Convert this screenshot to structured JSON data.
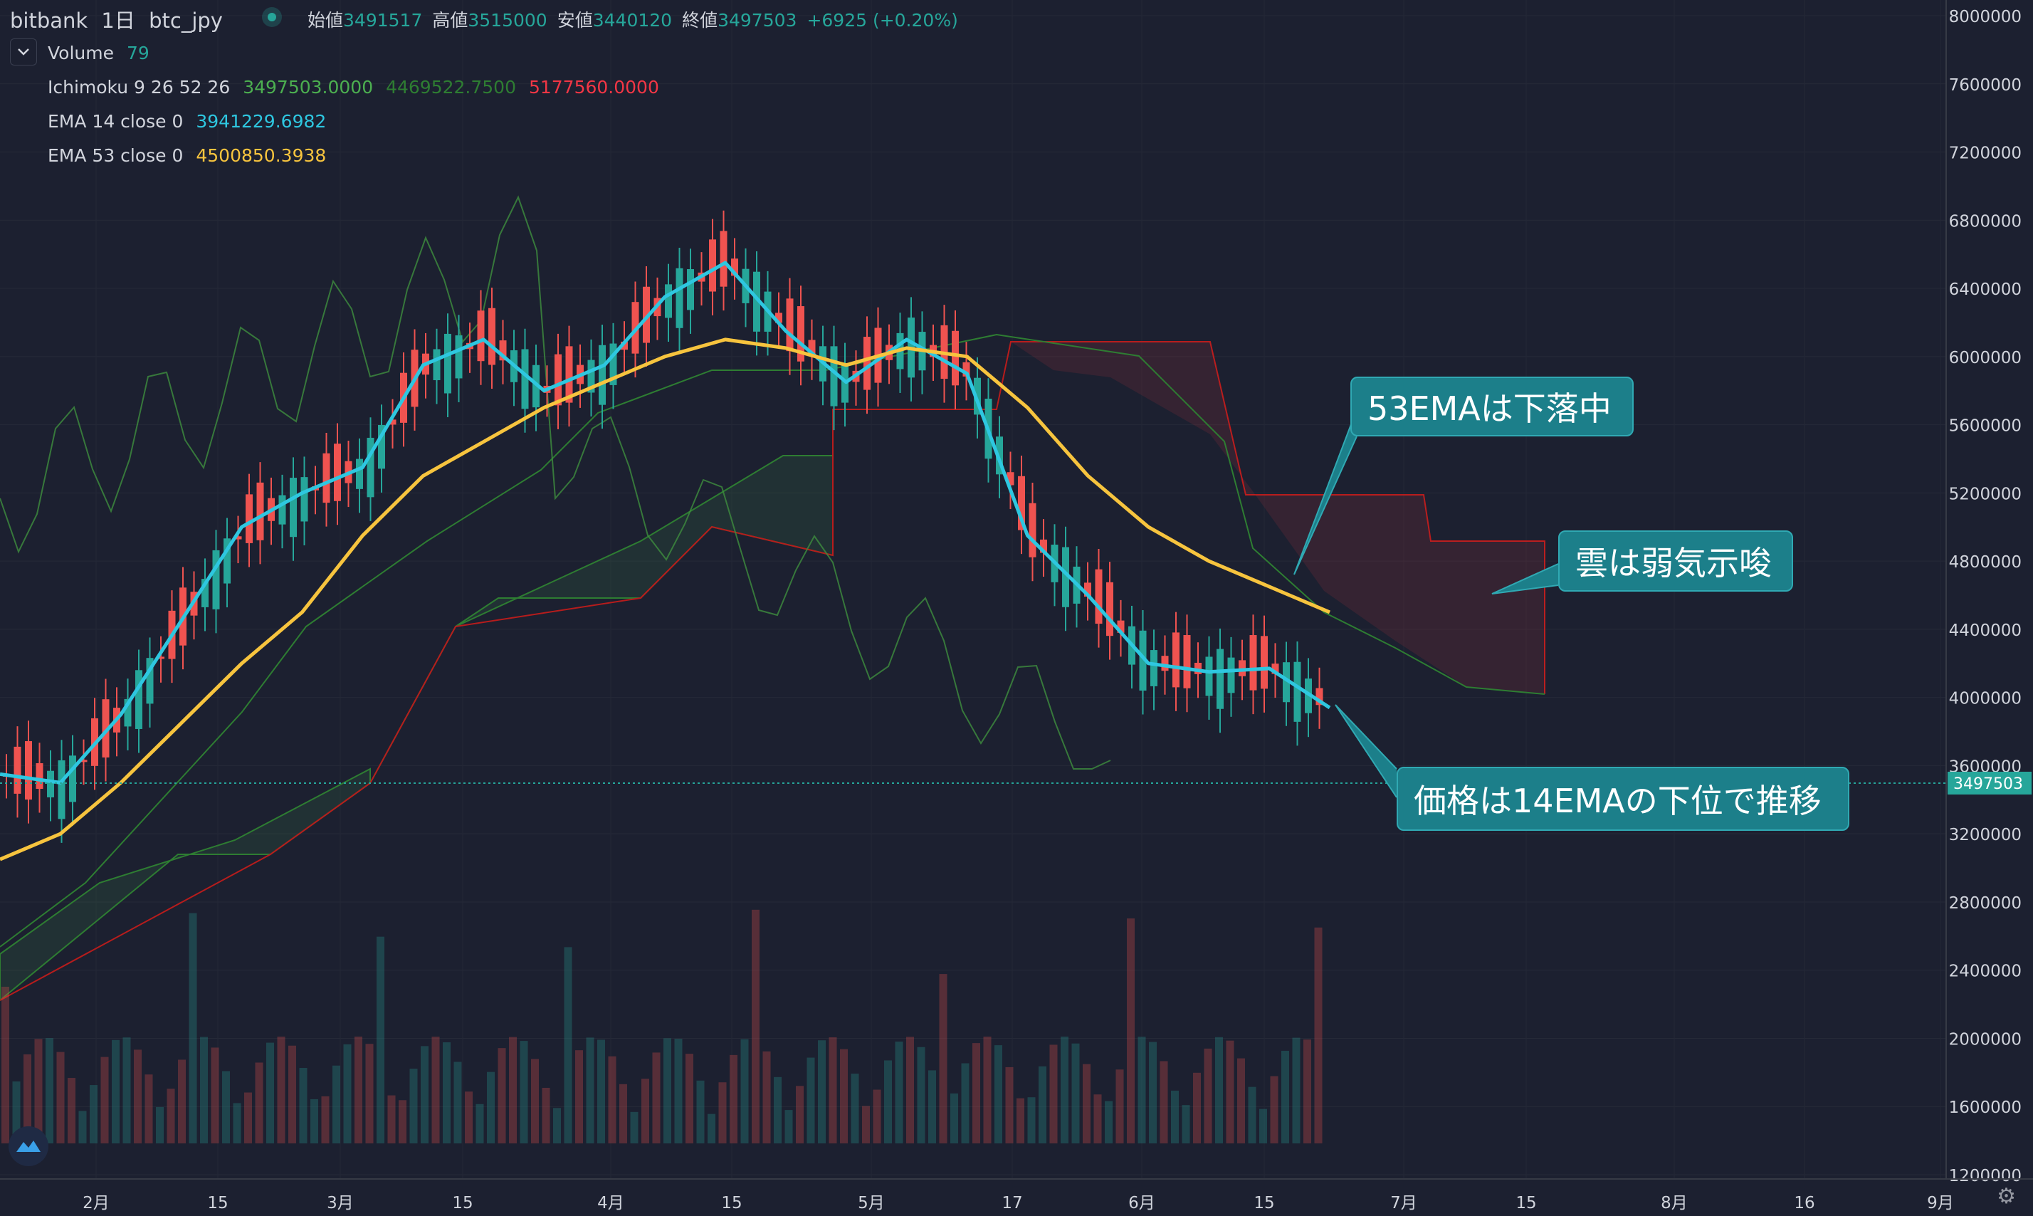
{
  "header": {
    "exchange": "bitbank",
    "interval": "1日",
    "symbol": "btc_jpy",
    "ohlc": {
      "open_label": "始値",
      "open": "3491517",
      "high_label": "高値",
      "high": "3515000",
      "low_label": "安値",
      "low": "3440120",
      "close_label": "終値",
      "close": "3497503",
      "change": "+6925 (+0.20%)"
    }
  },
  "indicators": {
    "volume": {
      "name": "Volume",
      "value": "79"
    },
    "ichimoku": {
      "name": "Ichimoku 9 26 52 26",
      "values": [
        "3497503.0000",
        "4469522.7500",
        "5177560.0000"
      ],
      "colors": [
        "#4caf50",
        "#2e7d32",
        "#f23645"
      ]
    },
    "ema14": {
      "name": "EMA 14 close 0",
      "value": "3941229.6982",
      "color": "#2ec7e0"
    },
    "ema53": {
      "name": "EMA 53 close 0",
      "value": "4500850.3938",
      "color": "#f7c43e"
    }
  },
  "annotations": {
    "ema53_falling": "53EMAは下落中",
    "cloud_bearish": "雲は弱気示唆",
    "price_below_ema14": "価格は14EMAの下位で推移"
  },
  "price_tag": "3497503",
  "icons": {
    "collapse": "chevron-down-icon",
    "logo": "tradingview-logo-icon",
    "settings": "gear-icon",
    "status": "status-dot-icon"
  },
  "chart_data": {
    "type": "line",
    "ylim": [
      1200000,
      8000000
    ],
    "y_ticks": [
      1200000,
      1600000,
      2000000,
      2400000,
      2800000,
      3200000,
      3600000,
      4000000,
      4400000,
      4800000,
      5200000,
      5600000,
      6000000,
      6400000,
      6800000,
      7200000,
      7600000,
      8000000
    ],
    "x_ticks": [
      "2月",
      "15",
      "3月",
      "15",
      "4月",
      "15",
      "5月",
      "17",
      "6月",
      "15",
      "7月",
      "15",
      "8月",
      "16",
      "9月"
    ],
    "x": [
      "01-20",
      "01-27",
      "02-03",
      "02-10",
      "02-17",
      "02-24",
      "03-03",
      "03-10",
      "03-17",
      "03-24",
      "03-31",
      "04-07",
      "04-14",
      "04-21",
      "04-28",
      "05-05",
      "05-12",
      "05-19",
      "05-26",
      "06-02",
      "06-09",
      "06-16",
      "06-20"
    ],
    "series": [
      {
        "name": "EMA 14",
        "color": "#2ec7e0",
        "values": [
          3550000,
          3500000,
          3900000,
          4450000,
          5000000,
          5200000,
          5350000,
          5950000,
          6100000,
          5800000,
          5950000,
          6350000,
          6550000,
          6150000,
          5850000,
          6100000,
          5900000,
          4950000,
          4600000,
          4200000,
          4150000,
          4170000,
          3940000
        ]
      },
      {
        "name": "EMA 53",
        "color": "#f7c43e",
        "values": [
          3050000,
          3200000,
          3500000,
          3850000,
          4200000,
          4500000,
          4950000,
          5300000,
          5500000,
          5700000,
          5850000,
          6000000,
          6100000,
          6050000,
          5950000,
          6050000,
          6000000,
          5700000,
          5300000,
          5000000,
          4800000,
          4650000,
          4500000
        ]
      }
    ]
  }
}
